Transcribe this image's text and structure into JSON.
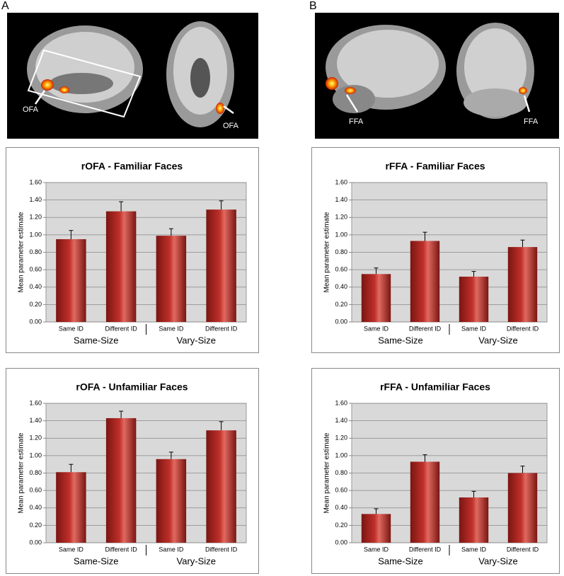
{
  "panel_labels": [
    "A",
    "B"
  ],
  "brain_labels": [
    "OFA",
    "OFA",
    "FFA",
    "FFA"
  ],
  "chart_data": [
    {
      "type": "bar",
      "title": "rOFA - Familiar Faces",
      "y_label": "Mean parameter estimate",
      "categories": [
        "Same ID",
        "Different ID",
        "Same ID",
        "Different ID"
      ],
      "groups": [
        "Same-Size",
        "Vary-Size"
      ],
      "values": [
        0.95,
        1.27,
        0.99,
        1.29
      ],
      "errors": [
        0.1,
        0.11,
        0.08,
        0.1
      ],
      "color": "#c0302a",
      "ylim": [
        0,
        1.6
      ],
      "yticks": [
        {
          "value": 0,
          "label": "0.00"
        },
        {
          "value": 0.2,
          "label": "0.20"
        },
        {
          "value": 0.4,
          "label": "0.40"
        },
        {
          "value": 0.6,
          "label": "0.60"
        },
        {
          "value": 0.8,
          "label": "0.80"
        },
        {
          "value": 1,
          "label": "1.00"
        },
        {
          "value": 1.2,
          "label": "1.20"
        },
        {
          "value": 1.4,
          "label": "1.40"
        },
        {
          "value": 1.6,
          "label": "1.60"
        }
      ],
      "grid": true
    },
    {
      "type": "bar",
      "title": "rFFA - Familiar Faces",
      "y_label": "Mean parameter estimate",
      "categories": [
        "Same ID",
        "Different ID",
        "Same ID",
        "Different ID"
      ],
      "groups": [
        "Same-Size",
        "Vary-Size"
      ],
      "values": [
        0.55,
        0.93,
        0.52,
        0.86
      ],
      "errors": [
        0.07,
        0.1,
        0.06,
        0.08
      ],
      "color": "#c0302a",
      "ylim": [
        0,
        1.6
      ],
      "yticks": [
        {
          "value": 0,
          "label": "0.00"
        },
        {
          "value": 0.2,
          "label": "0.20"
        },
        {
          "value": 0.4,
          "label": "0.40"
        },
        {
          "value": 0.6,
          "label": "0.60"
        },
        {
          "value": 0.8,
          "label": "0.80"
        },
        {
          "value": 1,
          "label": "1.00"
        },
        {
          "value": 1.2,
          "label": "1.20"
        },
        {
          "value": 1.4,
          "label": "1.40"
        },
        {
          "value": 1.6,
          "label": "1.60"
        }
      ],
      "grid": true
    },
    {
      "type": "bar",
      "title": "rOFA - Unfamiliar Faces",
      "y_label": "Mean parameter estimate",
      "categories": [
        "Same ID",
        "Different ID",
        "Same ID",
        "Different ID"
      ],
      "groups": [
        "Same-Size",
        "Vary-Size"
      ],
      "values": [
        0.81,
        1.43,
        0.96,
        1.29
      ],
      "errors": [
        0.09,
        0.08,
        0.08,
        0.1
      ],
      "color": "#c0302a",
      "ylim": [
        0,
        1.6
      ],
      "yticks": [
        {
          "value": 0,
          "label": "0.00"
        },
        {
          "value": 0.2,
          "label": "0.20"
        },
        {
          "value": 0.4,
          "label": "0.40"
        },
        {
          "value": 0.6,
          "label": "0.60"
        },
        {
          "value": 0.8,
          "label": "0.80"
        },
        {
          "value": 1,
          "label": "1.00"
        },
        {
          "value": 1.2,
          "label": "1.20"
        },
        {
          "value": 1.4,
          "label": "1.40"
        },
        {
          "value": 1.6,
          "label": "1.60"
        }
      ],
      "grid": true
    },
    {
      "type": "bar",
      "title": "rFFA - Unfamiliar Faces",
      "y_label": "Mean parameter estimate",
      "categories": [
        "Same ID",
        "Different ID",
        "Same ID",
        "Different ID"
      ],
      "groups": [
        "Same-Size",
        "Vary-Size"
      ],
      "values": [
        0.33,
        0.93,
        0.52,
        0.8
      ],
      "errors": [
        0.06,
        0.08,
        0.07,
        0.08
      ],
      "color": "#c0302a",
      "ylim": [
        0,
        1.6
      ],
      "yticks": [
        {
          "value": 0,
          "label": "0.00"
        },
        {
          "value": 0.2,
          "label": "0.20"
        },
        {
          "value": 0.4,
          "label": "0.40"
        },
        {
          "value": 0.6,
          "label": "0.60"
        },
        {
          "value": 0.8,
          "label": "0.80"
        },
        {
          "value": 1,
          "label": "1.00"
        },
        {
          "value": 1.2,
          "label": "1.20"
        },
        {
          "value": 1.4,
          "label": "1.40"
        },
        {
          "value": 1.6,
          "label": "1.60"
        }
      ],
      "grid": true
    }
  ]
}
